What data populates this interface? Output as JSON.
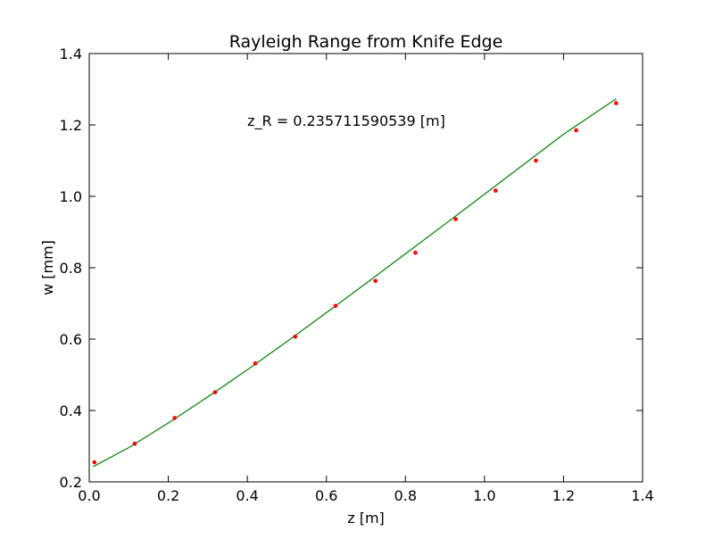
{
  "chart_data": {
    "type": "scatter",
    "title": "Rayleigh Range from Knife Edge",
    "xlabel": "z [m]",
    "ylabel": "w [mm]",
    "xlim": [
      0.0,
      1.4
    ],
    "ylim": [
      0.2,
      1.4
    ],
    "xticks": [
      0.0,
      0.2,
      0.4,
      0.6,
      0.8,
      1.0,
      1.2,
      1.4
    ],
    "yticks": [
      0.2,
      0.4,
      0.6,
      0.8,
      1.0,
      1.2,
      1.4
    ],
    "xtick_labels": [
      "0.0",
      "0.2",
      "0.4",
      "0.6",
      "0.8",
      "1.0",
      "1.2",
      "1.4"
    ],
    "ytick_labels": [
      "0.2",
      "0.4",
      "0.6",
      "0.8",
      "1.0",
      "1.2",
      "1.4"
    ],
    "grid": false,
    "annotation": {
      "text": "z_R = 0.235711590539 [m]",
      "x": 0.4,
      "y": 1.2
    },
    "series": [
      {
        "kind": "points",
        "color": "#ff0000",
        "x": [
          0.013,
          0.115,
          0.216,
          0.318,
          0.42,
          0.521,
          0.623,
          0.724,
          0.825,
          0.927,
          1.028,
          1.13,
          1.232,
          1.333
        ],
        "y": [
          0.255,
          0.307,
          0.379,
          0.451,
          0.532,
          0.607,
          0.693,
          0.763,
          0.842,
          0.936,
          1.016,
          1.1,
          1.185,
          1.261
        ]
      },
      {
        "kind": "fit",
        "color": "#008000",
        "x": [
          0.01,
          0.1,
          0.2,
          0.3,
          0.4,
          0.5,
          0.6,
          0.7,
          0.8,
          0.9,
          1.0,
          1.1,
          1.2,
          1.333
        ],
        "y": [
          0.243,
          0.296,
          0.365,
          0.438,
          0.514,
          0.593,
          0.674,
          0.756,
          0.839,
          0.922,
          1.006,
          1.09,
          1.174,
          1.273
        ]
      }
    ]
  }
}
